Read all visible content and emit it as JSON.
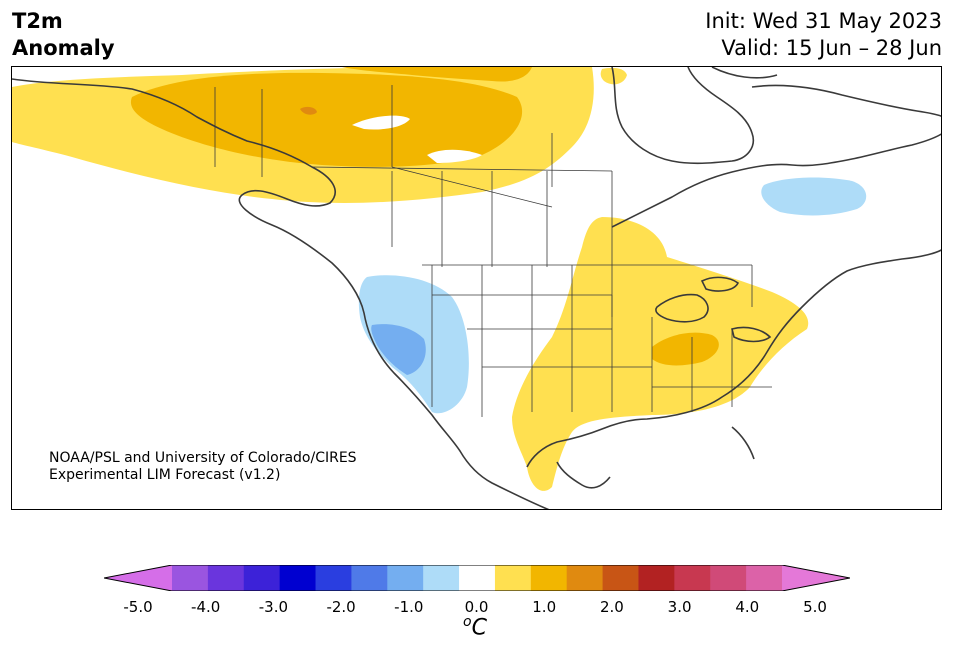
{
  "header": {
    "title_line1": "T2m",
    "title_line2": "Anomaly",
    "init": "Init: Wed 31 May 2023",
    "valid": "Valid: 15 Jun – 28 Jun"
  },
  "credit": {
    "line1": "NOAA/PSL and University of Colorado/CIRES",
    "line2": "Experimental LIM Forecast (v1.2)"
  },
  "colorbar": {
    "unit_sup": "o",
    "unit_main": "C",
    "colors": [
      "#d56ee8",
      "#9a55e0",
      "#6a35dd",
      "#3c22d8",
      "#0000d0",
      "#2a3ee0",
      "#4f7ae8",
      "#74aef0",
      "#aedcf8",
      "#ffffff",
      "#ffe050",
      "#f2b600",
      "#e08a10",
      "#c85515",
      "#b22222",
      "#c83850",
      "#d04a78",
      "#dc62a8",
      "#e478d8"
    ],
    "ticks": [
      "-5.0",
      "-4.0",
      "-3.0",
      "-2.0",
      "-1.0",
      "0.0",
      "1.0",
      "2.0",
      "3.0",
      "4.0",
      "5.0"
    ]
  },
  "map": {
    "region": "North America",
    "anomaly_colors": {
      "light_yellow": "#ffe050",
      "gold": "#f2b600",
      "orange": "#e08a10",
      "light_blue": "#aedcf8",
      "mid_blue": "#74aef0"
    },
    "coast_color": "#3a3a3a"
  }
}
